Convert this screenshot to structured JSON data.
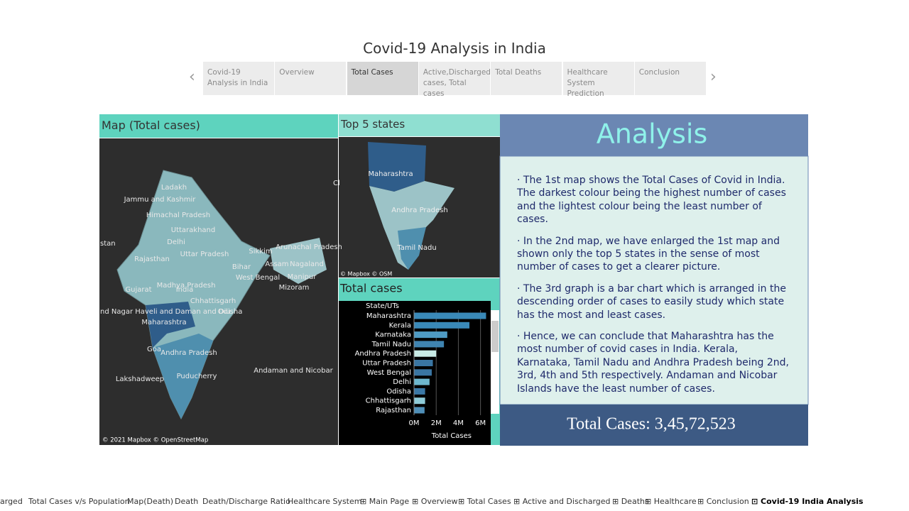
{
  "header": {
    "title": "Covid-19 Analysis in India"
  },
  "nav": {
    "tabs": [
      "Covid-19 Analysis in India",
      "Overview",
      "Total Cases",
      "Active,Discharged cases, Total cases",
      "Total Deaths",
      "Healthcare System Prediction",
      "Conclusion"
    ],
    "active": 2
  },
  "map_panel": {
    "title": "Map (Total cases)",
    "labels": [
      "Ladakh",
      "Jammu and Kashmir",
      "Himachal Pradesh",
      "Uttarakhand",
      "Delhi",
      "Rajasthan",
      "Uttar Pradesh",
      "Sikkim",
      "Arunachal Pradesh",
      "Bihar",
      "Assam",
      "Nagaland",
      "West Bengal",
      "Manipur",
      "Gujarat",
      "Madhya Pradesh",
      "India",
      "Mizoram",
      "Chhattisgarh",
      "nd Nagar Haveli and Daman and Diu",
      "Odisha",
      "Maharashtra",
      "Goa",
      "Andhra Pradesh",
      "Puducherry",
      "Lakshadweep",
      "Andaman and Nicobar",
      "stan",
      "Cl"
    ],
    "attribution": "© 2021 Mapbox © OpenStreetMap"
  },
  "top5_panel": {
    "title": "Top 5 states",
    "labels": [
      "Maharashtra",
      "Andhra Pradesh",
      "Tamil Nadu"
    ],
    "attribution": "© Mapbox © OSM"
  },
  "chart_data": {
    "type": "hbar",
    "title": "Total cases",
    "category_header": "State/UTs",
    "x_label": "Total Cases",
    "categories": [
      "Maharashtra",
      "Kerala",
      "Karnataka",
      "Tamil Nadu",
      "Andhra Pradesh",
      "Uttar Pradesh",
      "West Bengal",
      "Delhi",
      "Odisha",
      "Chhattisgarh",
      "Rajasthan"
    ],
    "values": [
      6.5,
      5.0,
      3.0,
      2.7,
      2.0,
      1.7,
      1.6,
      1.4,
      1.0,
      1.0,
      0.95
    ],
    "colors": [
      "#3a89b8",
      "#3a89b8",
      "#4f9bc4",
      "#3f84b1",
      "#c8ebe6",
      "#3a76a3",
      "#3a76a3",
      "#6db7cf",
      "#3a78a6",
      "#8ecbd8",
      "#4f8fb8"
    ],
    "xlim": [
      0,
      6.6
    ],
    "xticks": [
      {
        "value": 0,
        "label": "0M"
      },
      {
        "value": 2,
        "label": "2M"
      },
      {
        "value": 4,
        "label": "4M"
      },
      {
        "value": 6,
        "label": "6M"
      }
    ],
    "grid": true
  },
  "analysis": {
    "title": "Analysis",
    "paragraphs": [
      "· The 1st map shows the Total Cases of Covid in India. The darkest colour being the highest number of cases and the lightest colour being the least number of cases.",
      "· In the 2nd map, we have enlarged the 1st map and shown only the top 5 states in the sense of most number of cases to get a clearer picture.",
      "· The 3rd graph is a bar chart which is arranged in the descending order of cases to easily study which state has the most and least cases.",
      "· Hence, we can conclude that Maharashtra has the most number of covid cases in India. Kerala, Karnataka, Tamil Nadu and Andhra Pradesh being 2nd, 3rd, 4th and 5th respectively. Andaman and Nicobar Islands have the least number of cases."
    ],
    "total": "Total Cases: 3,45,72,523"
  },
  "sheet_tabs": {
    "tabs": [
      "arged",
      "Total Cases v/s Population",
      "Map(Death)",
      "Death",
      "Death/Discharge Ratio",
      "Healthcare System",
      "⊞ Main Page",
      "⊞ Overview",
      "⊞ Total Cases",
      "⊞ Active and Discharged",
      "⊞ Deaths",
      "⊞ Healthcare",
      "⊞ Conclusion",
      "⊡ Covid-19 India Analysis"
    ],
    "active": 13
  }
}
